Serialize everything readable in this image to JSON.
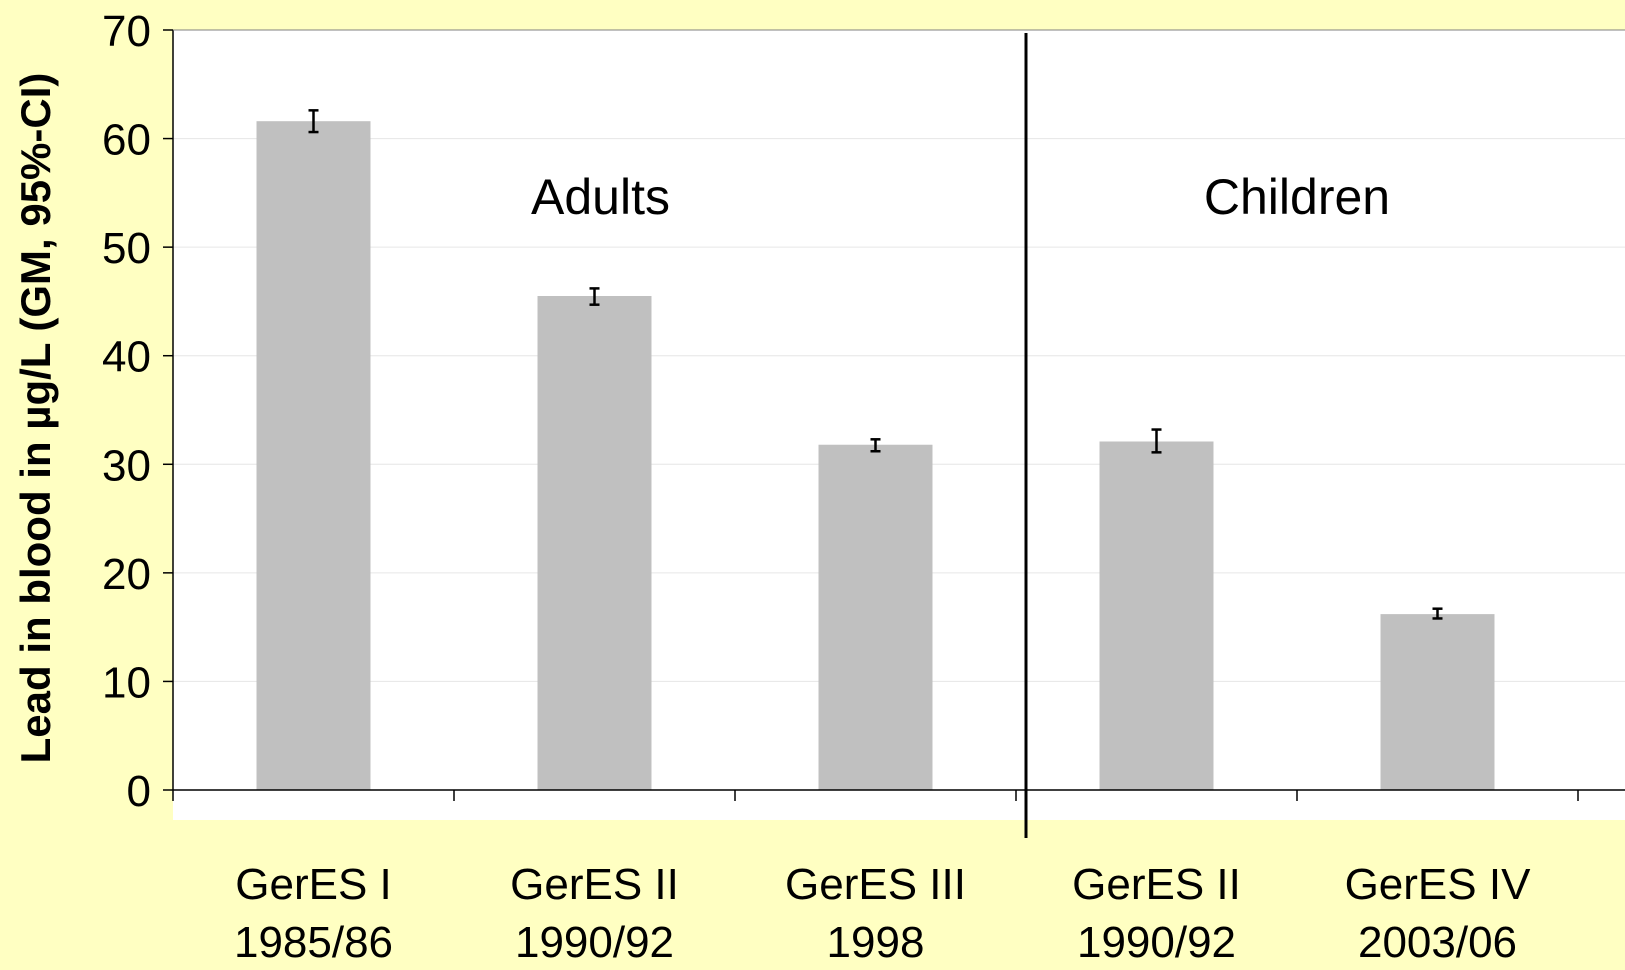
{
  "chart_data": {
    "type": "bar",
    "ylabel": "Lead in blood in µg/L (GM, 95%-CI)",
    "ylim": [
      0,
      70
    ],
    "yticks": [
      0,
      10,
      20,
      30,
      40,
      50,
      60,
      70
    ],
    "grid": true,
    "colors": {
      "background": "#ffffc2",
      "plot_area": "#ffffff",
      "bar": "#c0c0c0",
      "axis": "#000000",
      "gridline": "#e6e6e6"
    },
    "groups": [
      {
        "label": "Adults",
        "category_count": 3
      },
      {
        "label": "Children",
        "category_count": 2
      }
    ],
    "categories": [
      {
        "line1": "GerES I",
        "line2": "1985/86"
      },
      {
        "line1": "GerES II",
        "line2": "1990/92"
      },
      {
        "line1": "GerES III",
        "line2": "1998"
      },
      {
        "line1": "GerES II",
        "line2": "1990/92"
      },
      {
        "line1": "GerES IV",
        "line2": "2003/06"
      }
    ],
    "values": [
      61.6,
      45.5,
      31.8,
      32.1,
      16.2
    ],
    "ci_lower": [
      60.6,
      44.7,
      31.2,
      31.1,
      15.8
    ],
    "ci_upper": [
      62.6,
      46.2,
      32.3,
      33.2,
      16.7
    ]
  }
}
